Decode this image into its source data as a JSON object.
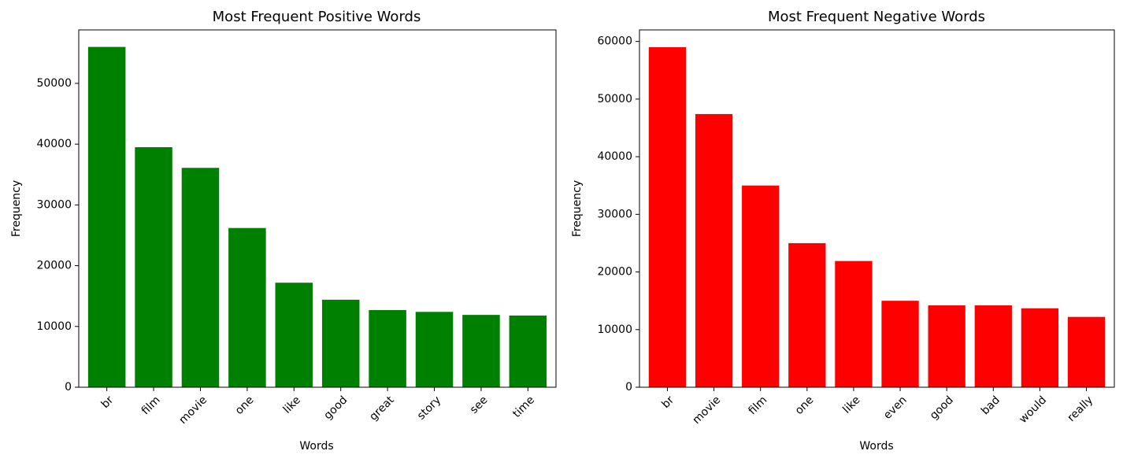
{
  "chart_data": [
    {
      "type": "bar",
      "title": "Most Frequent Positive Words",
      "xlabel": "Words",
      "ylabel": "Frequency",
      "categories": [
        "br",
        "film",
        "movie",
        "one",
        "like",
        "good",
        "great",
        "story",
        "see",
        "time"
      ],
      "values": [
        56000,
        39500,
        36100,
        26200,
        17200,
        14400,
        12700,
        12400,
        11900,
        11800
      ],
      "ylim": [
        0,
        58800
      ],
      "yticks": [
        0,
        10000,
        20000,
        30000,
        40000,
        50000
      ],
      "color": "#008000",
      "grid": false
    },
    {
      "type": "bar",
      "title": "Most Frequent Negative Words",
      "xlabel": "Words",
      "ylabel": "Frequency",
      "categories": [
        "br",
        "movie",
        "film",
        "one",
        "like",
        "even",
        "good",
        "bad",
        "would",
        "really"
      ],
      "values": [
        59000,
        47400,
        35000,
        25000,
        21900,
        15000,
        14200,
        14200,
        13700,
        12200
      ],
      "ylim": [
        0,
        62000
      ],
      "yticks": [
        0,
        10000,
        20000,
        30000,
        40000,
        50000,
        60000
      ],
      "color": "#ff0000",
      "grid": false
    }
  ]
}
